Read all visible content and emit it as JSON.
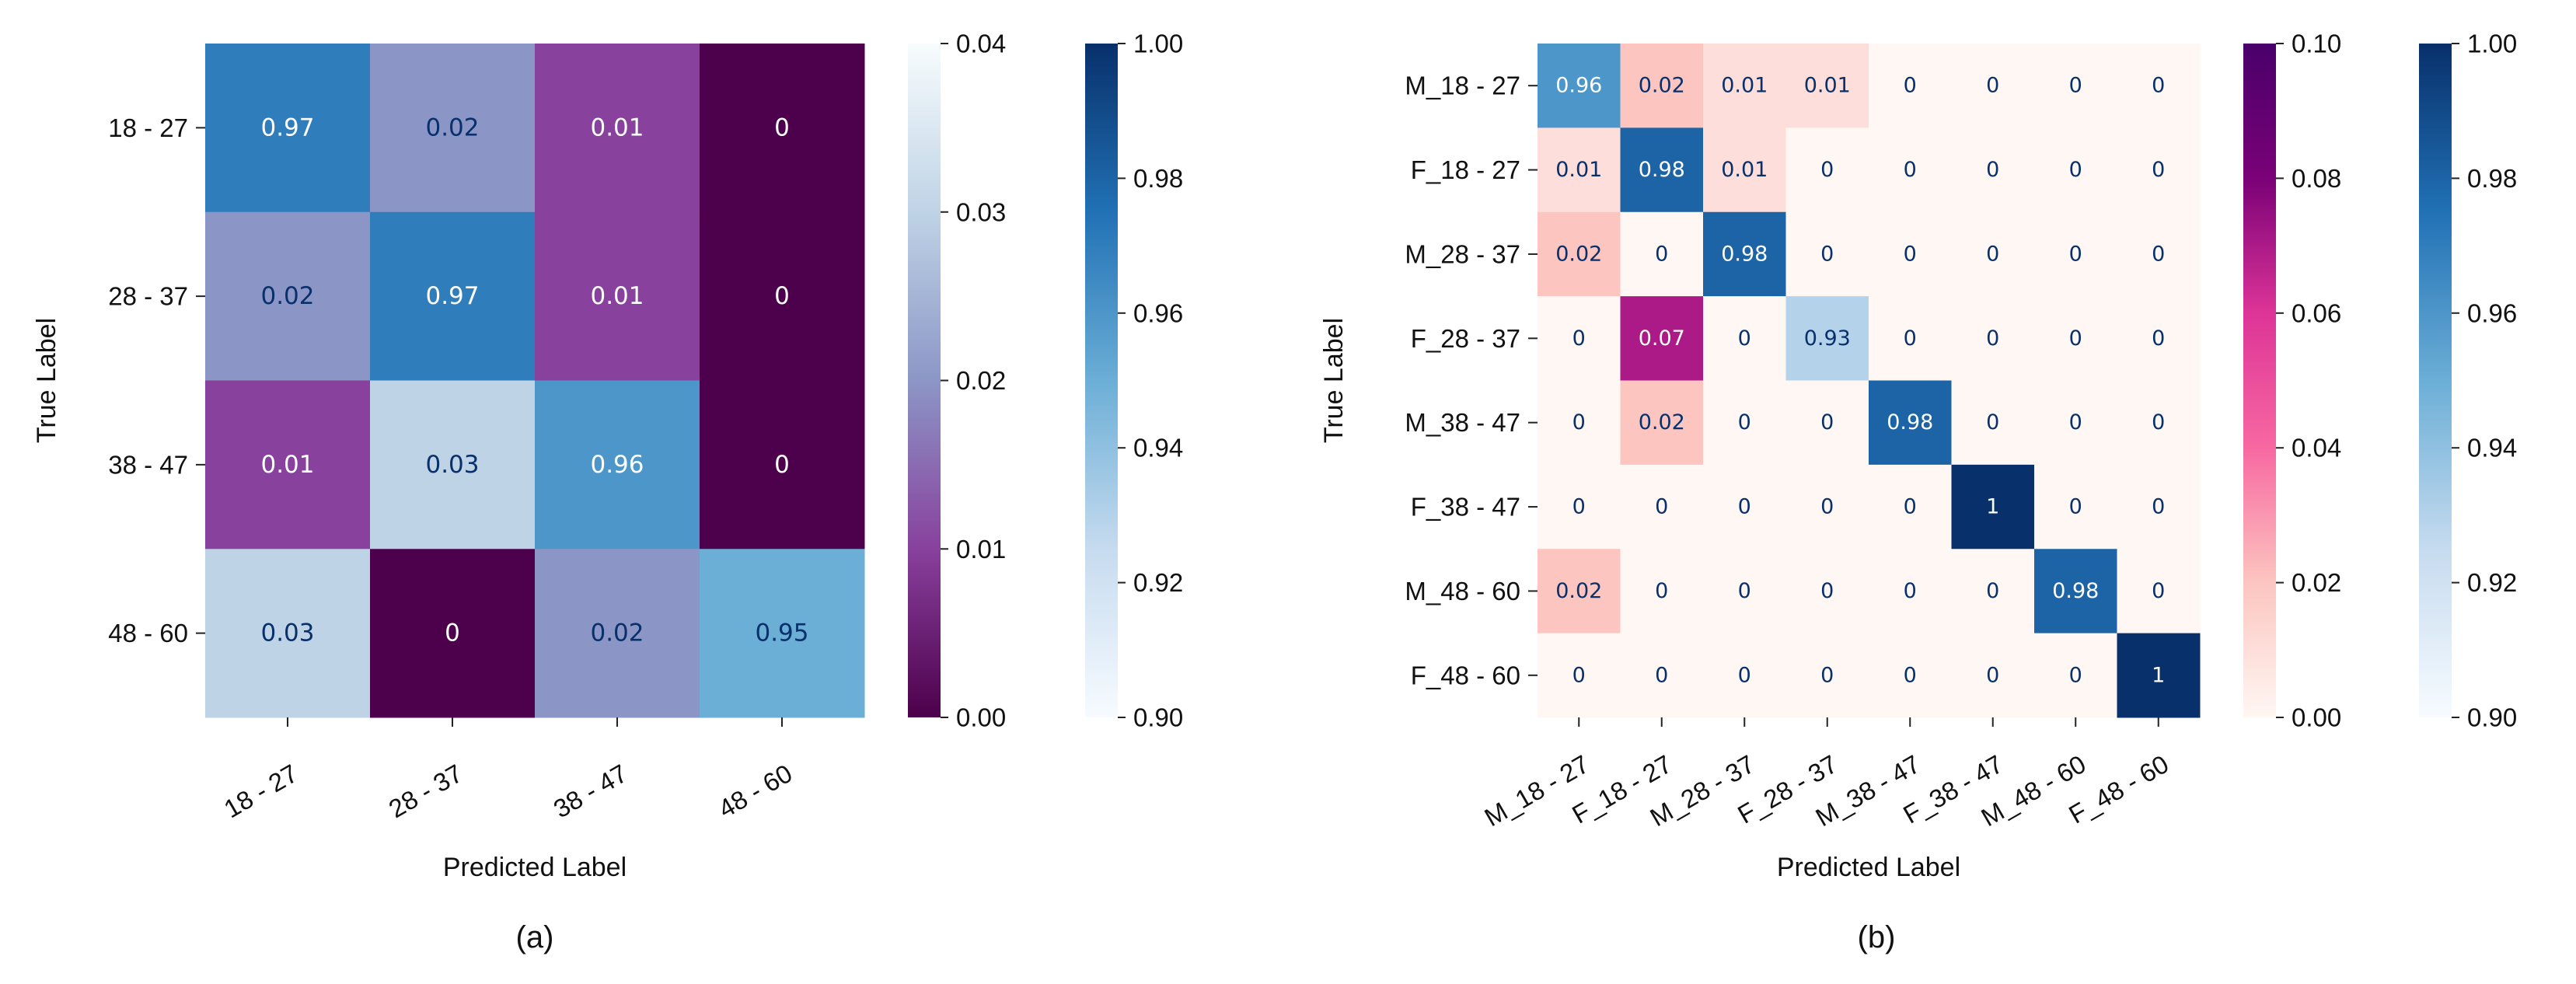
{
  "chart_data": [
    {
      "type": "heatmap",
      "caption": "(a)",
      "xlabel": "Predicted Label",
      "ylabel": "True Label",
      "categories": [
        "18 - 27",
        "28 - 37",
        "38 - 47",
        "48 - 60"
      ],
      "matrix": [
        [
          0.97,
          0.02,
          0.01,
          0
        ],
        [
          0.02,
          0.97,
          0.01,
          0
        ],
        [
          0.01,
          0.03,
          0.96,
          0
        ],
        [
          0.03,
          0,
          0.02,
          0.95
        ]
      ],
      "colorbars": [
        {
          "name": "off-diagonal",
          "range": [
            0.0,
            0.04
          ],
          "ticks": [
            "0.00",
            "0.01",
            "0.02",
            "0.03",
            "0.04"
          ],
          "colors": [
            "#4d004b",
            "#88419d",
            "#8c96c6",
            "#bfd3e6",
            "#f7fcfd"
          ]
        },
        {
          "name": "diagonal",
          "range": [
            0.9,
            1.0
          ],
          "ticks": [
            "0.90",
            "0.92",
            "0.94",
            "0.96",
            "0.98",
            "1.00"
          ],
          "colors": [
            "#f7fbff",
            "#c6dbef",
            "#6baed6",
            "#2171b5",
            "#08306b"
          ]
        }
      ]
    },
    {
      "type": "heatmap",
      "caption": "(b)",
      "xlabel": "Predicted Label",
      "ylabel": "True Label",
      "categories": [
        "M_18 - 27",
        "F_18 - 27",
        "M_28 - 37",
        "F_28 - 37",
        "M_38 - 47",
        "F_38 - 47",
        "M_48 - 60",
        "F_48 - 60"
      ],
      "matrix": [
        [
          0.96,
          0.02,
          0.01,
          0.01,
          0,
          0,
          0,
          0
        ],
        [
          0.01,
          0.98,
          0.01,
          0,
          0,
          0,
          0,
          0
        ],
        [
          0.02,
          0,
          0.98,
          0,
          0,
          0,
          0,
          0
        ],
        [
          0,
          0.07,
          0,
          0.93,
          0,
          0,
          0,
          0
        ],
        [
          0,
          0.02,
          0,
          0,
          0.98,
          0,
          0,
          0
        ],
        [
          0,
          0,
          0,
          0,
          0,
          1,
          0,
          0
        ],
        [
          0.02,
          0,
          0,
          0,
          0,
          0,
          0.98,
          0
        ],
        [
          0,
          0,
          0,
          0,
          0,
          0,
          0,
          1
        ]
      ],
      "colorbars": [
        {
          "name": "off-diagonal",
          "range": [
            0.0,
            0.1
          ],
          "ticks": [
            "0.00",
            "0.02",
            "0.04",
            "0.06",
            "0.08",
            "0.10"
          ],
          "colors": [
            "#fff7f3",
            "#fcc5c0",
            "#f768a1",
            "#dd3497",
            "#7a0177",
            "#49006a"
          ]
        },
        {
          "name": "diagonal",
          "range": [
            0.9,
            1.0
          ],
          "ticks": [
            "0.90",
            "0.92",
            "0.94",
            "0.96",
            "0.98",
            "1.00"
          ],
          "colors": [
            "#f7fbff",
            "#c6dbef",
            "#6baed6",
            "#2171b5",
            "#08306b"
          ]
        }
      ]
    }
  ]
}
